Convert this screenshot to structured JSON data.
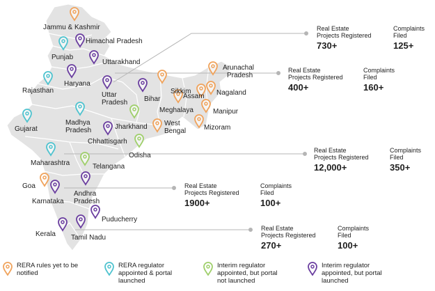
{
  "colors": {
    "orange": "#f0a35c",
    "teal": "#4fc3cf",
    "green": "#9fcf6b",
    "purple": "#6b3fa0",
    "map_fill": "#e3e3e3",
    "map_stroke": "#ffffff"
  },
  "pins": [
    {
      "state": "Jammu & Kashmir",
      "status": "orange"
    },
    {
      "state": "Himachal Pradesh",
      "status": "purple"
    },
    {
      "state": "Punjab",
      "status": "teal"
    },
    {
      "state": "Uttarakhand",
      "status": "purple"
    },
    {
      "state": "Haryana",
      "status": "purple"
    },
    {
      "state": "Rajasthan",
      "status": "teal"
    },
    {
      "state": "Uttar Pradesh",
      "status": "purple"
    },
    {
      "state": "Bihar",
      "status": "purple"
    },
    {
      "state": "Sikkim",
      "status": "orange"
    },
    {
      "state": "Arunachal Pradesh",
      "status": "orange"
    },
    {
      "state": "Assam",
      "status": "orange"
    },
    {
      "state": "Nagaland",
      "status": "orange"
    },
    {
      "state": "Meghalaya",
      "status": "orange"
    },
    {
      "state": "Manipur",
      "status": "orange"
    },
    {
      "state": "Mizoram",
      "status": "orange"
    },
    {
      "state": "Gujarat",
      "status": "teal"
    },
    {
      "state": "Madhya Pradesh",
      "status": "teal"
    },
    {
      "state": "Jharkhand",
      "status": "green"
    },
    {
      "state": "West Bengal",
      "status": "orange"
    },
    {
      "state": "Chhattisgarh",
      "status": "purple"
    },
    {
      "state": "Odisha",
      "status": "green"
    },
    {
      "state": "Maharashtra",
      "status": "teal"
    },
    {
      "state": "Telangana",
      "status": "green"
    },
    {
      "state": "Goa",
      "status": "orange"
    },
    {
      "state": "Karnataka",
      "status": "purple"
    },
    {
      "state": "Andhra Pradesh",
      "status": "purple"
    },
    {
      "state": "Puducherry",
      "status": "purple"
    },
    {
      "state": "Kerala",
      "status": "purple"
    },
    {
      "state": "Tamil Nadu",
      "status": "purple"
    }
  ],
  "labels": {
    "jk": "Jammu & Kashmir",
    "hp": "Himachal Pradesh",
    "punjab": "Punjab",
    "uk": "Uttarakhand",
    "haryana": "Haryana",
    "rajasthan": "Rajasthan",
    "up1": "Uttar",
    "up2": "Pradesh",
    "bihar": "Bihar",
    "sikkim": "Sikkim",
    "ar1": "Arunachal",
    "ar2": "Pradesh",
    "assam": "Assam",
    "nagaland": "Nagaland",
    "meghalaya": "Meghalaya",
    "manipur": "Manipur",
    "mizoram": "Mizoram",
    "gujarat": "Gujarat",
    "mp1": "Madhya",
    "mp2": "Pradesh",
    "jharkhand": "Jharkhand",
    "wb1": "West",
    "wb2": "Bengal",
    "chhattisgarh": "Chhattisgarh",
    "odisha": "Odisha",
    "maharashtra": "Maharashtra",
    "telangana": "Telangana",
    "goa": "Goa",
    "karnataka": "Karnataka",
    "ap1": "Andhra",
    "ap2": "Pradesh",
    "puducherry": "Puducherry",
    "kerala": "Kerala",
    "tn": "Tamil Nadu"
  },
  "stats": [
    {
      "region": "North",
      "proj_label1": "Real Estate",
      "proj_label2": "Projects Registered",
      "proj_value": "730+",
      "comp_label1": "Complaints",
      "comp_label2": "Filed",
      "comp_value": "125+"
    },
    {
      "region": "North-East",
      "proj_label1": "Real Estate",
      "proj_label2": "Projects Registered",
      "proj_value": "400+",
      "comp_label1": "Complaints",
      "comp_label2": "Filed",
      "comp_value": "160+"
    },
    {
      "region": "West",
      "proj_label1": "Real Estate",
      "proj_label2": "Projects Registered",
      "proj_value": "12,000+",
      "comp_label1": "Complaints",
      "comp_label2": "Filed",
      "comp_value": "350+"
    },
    {
      "region": "South-West",
      "proj_label1": "Real Estate",
      "proj_label2": "Projects Registered",
      "proj_value": "1900+",
      "comp_label1": "Complaints",
      "comp_label2": "Filed",
      "comp_value": "100+"
    },
    {
      "region": "South",
      "proj_label1": "Real Estate",
      "proj_label2": "Projects Registered",
      "proj_value": "270+",
      "comp_label1": "Complaints",
      "comp_label2": "Filed",
      "comp_value": "100+"
    }
  ],
  "legend": [
    {
      "color": "orange",
      "line1": "RERA rules yet to be",
      "line2": "notified",
      "line3": ""
    },
    {
      "color": "teal",
      "line1": "RERA regulator",
      "line2": "appointed & portal",
      "line3": "launched"
    },
    {
      "color": "green",
      "line1": "Interim regulator",
      "line2": "appointed, but portal",
      "line3": "not launched"
    },
    {
      "color": "purple",
      "line1": "Interim regulator",
      "line2": "appointed, but portal",
      "line3": "launched"
    }
  ]
}
